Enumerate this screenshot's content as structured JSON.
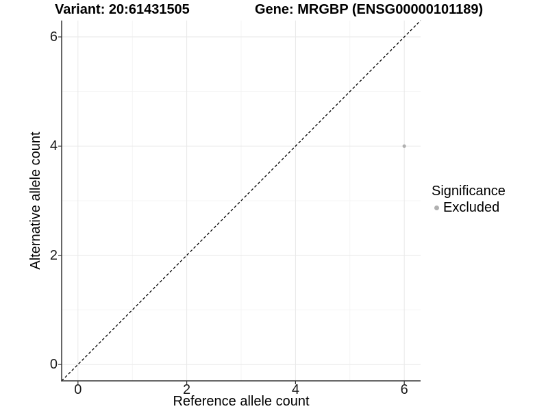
{
  "header": {
    "variant_title": "Variant: 20:61431505",
    "gene_title": "Gene: MRGBP (ENSG00000101189)"
  },
  "chart_data": {
    "type": "scatter",
    "xlabel": "Reference allele count",
    "ylabel": "Alternative allele count",
    "xlim": [
      -0.3,
      6.3
    ],
    "ylim": [
      -0.3,
      6.3
    ],
    "x_ticks": [
      0,
      2,
      4,
      6
    ],
    "y_ticks": [
      0,
      2,
      4,
      6
    ],
    "x_minor_gridlines": [
      1,
      3,
      5
    ],
    "y_minor_gridlines": [
      1,
      3,
      5
    ],
    "grid": "on",
    "points": [
      {
        "x": 6,
        "y": 4,
        "series": "Excluded",
        "color": "#b0b0b0"
      }
    ],
    "reference_line": {
      "kind": "identity",
      "style": "dashed",
      "color": "#000000"
    },
    "legend": {
      "title": "Significance",
      "position": "right",
      "entries": [
        {
          "label": "Excluded",
          "color": "#b0b0b0"
        }
      ]
    }
  },
  "colors": {
    "background": "#ffffff",
    "grid_major": "#e8e8e8",
    "grid_minor": "#f4f4f4",
    "axis_line": "#333333",
    "axis_text": "#1a1a1a",
    "title_text": "#000000",
    "point": "#b0b0b0"
  }
}
